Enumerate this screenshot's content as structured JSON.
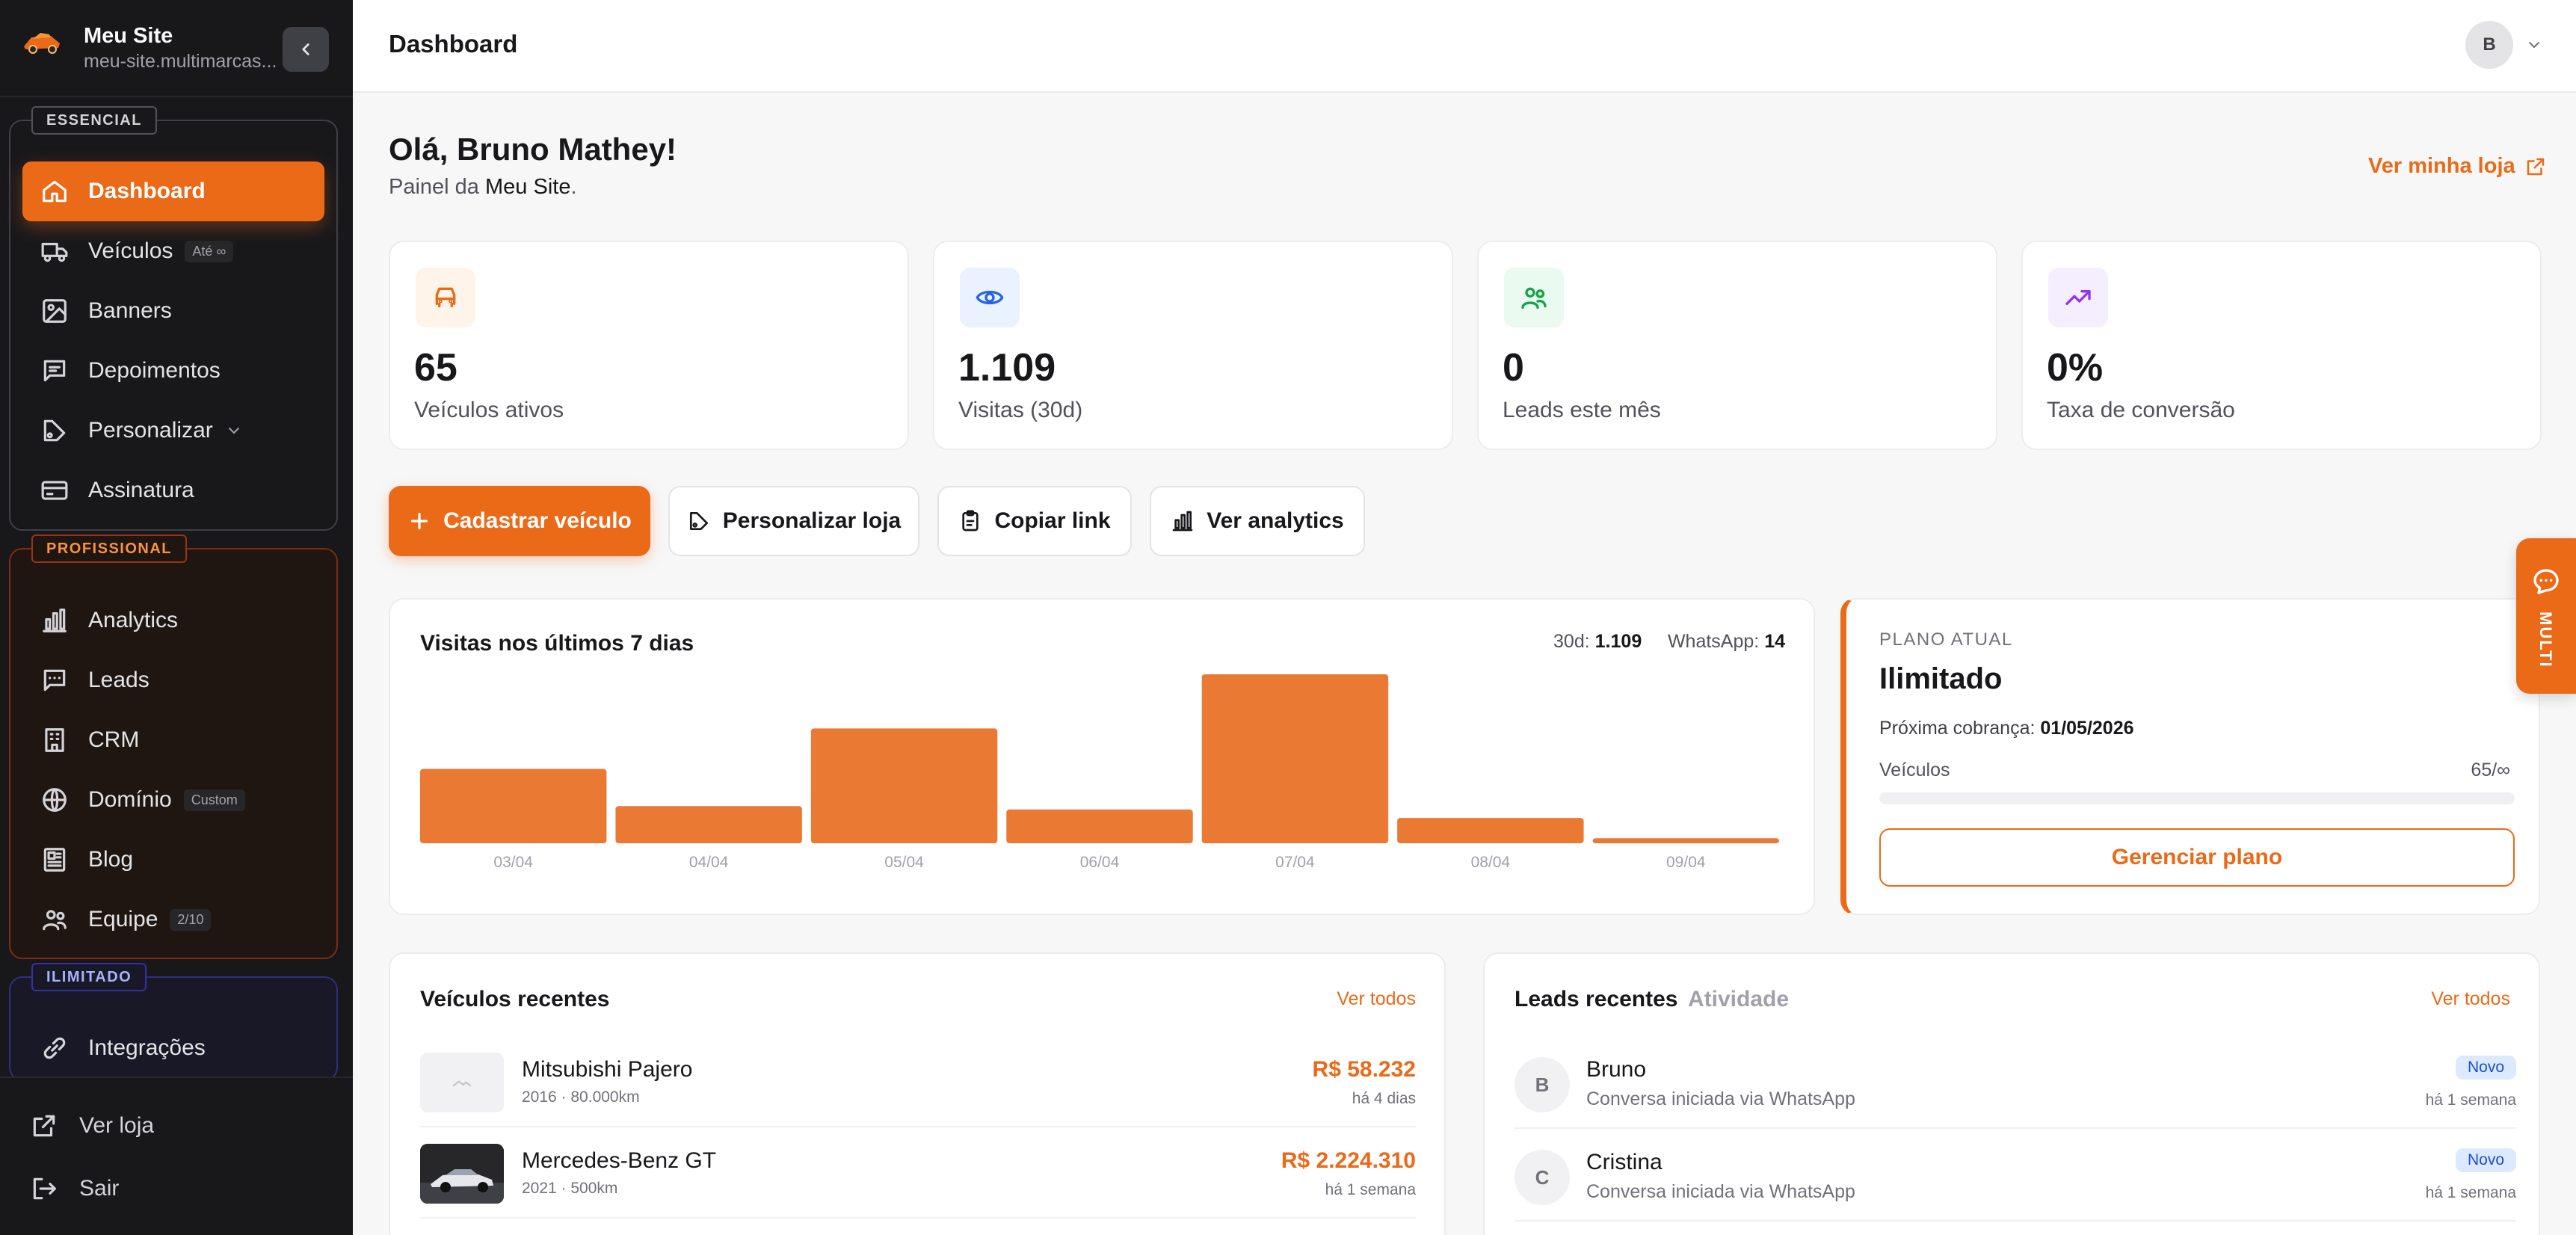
{
  "sidebar": {
    "site_name": "Meu Site",
    "site_domain": "meu-site.multimarcas...",
    "groups": {
      "essencial": {
        "tag": "ESSENCIAL",
        "items": [
          {
            "label": "Dashboard",
            "icon": "home-icon",
            "active": true
          },
          {
            "label": "Veículos",
            "icon": "truck-icon",
            "chip": "Até ∞"
          },
          {
            "label": "Banners",
            "icon": "image-icon"
          },
          {
            "label": "Depoimentos",
            "icon": "message-icon"
          },
          {
            "label": "Personalizar",
            "icon": "palette-icon"
          },
          {
            "label": "Assinatura",
            "icon": "card-icon"
          }
        ]
      },
      "profissional": {
        "tag": "PROFISSIONAL",
        "items": [
          {
            "label": "Analytics",
            "icon": "bar-chart-icon"
          },
          {
            "label": "Leads",
            "icon": "message-icon"
          },
          {
            "label": "CRM",
            "icon": "building-icon"
          },
          {
            "label": "Domínio",
            "icon": "globe-icon",
            "chip": "Custom"
          },
          {
            "label": "Blog",
            "icon": "newspaper-icon"
          },
          {
            "label": "Equipe",
            "icon": "users-icon",
            "chip": "2/10"
          }
        ]
      },
      "ilimitado": {
        "tag": "ILIMITADO",
        "items": [
          {
            "label": "Integrações",
            "icon": "link-icon"
          }
        ]
      }
    },
    "bottom": {
      "ver_loja": "Ver loja",
      "sair": "Sair"
    }
  },
  "header": {
    "title": "Dashboard",
    "avatar_initial": "B"
  },
  "main": {
    "greeting": "Olá, Bruno Mathey!",
    "subtitle_prefix": "Painel da",
    "subtitle_site": "Meu Site",
    "subtitle_suffix": ".",
    "ver_minha_loja": "Ver minha loja",
    "stats": [
      {
        "value": "65",
        "label": "Veículos ativos",
        "icon": "car-icon",
        "color": "#ea6a18"
      },
      {
        "value": "1.109",
        "label": "Visitas (30d)",
        "icon": "eye-icon",
        "color": "#2563eb"
      },
      {
        "value": "0",
        "label": "Leads este mês",
        "icon": "users-icon",
        "color": "#16a34a"
      },
      {
        "value": "0%",
        "label": "Taxa de conversão",
        "icon": "trending-up-icon",
        "color": "#9333ea"
      }
    ],
    "actions": {
      "cadastrar": "Cadastrar veículo",
      "personalizar": "Personalizar loja",
      "copiar": "Copiar link",
      "analytics": "Ver analytics"
    },
    "visits_card": {
      "title": "Visitas nos últimos 7 dias",
      "meta_30d_label": "30d:",
      "meta_30d_value": "1.109",
      "meta_wa_label": "WhatsApp:",
      "meta_wa_value": "14"
    },
    "plan": {
      "kicker": "PLANO ATUAL",
      "name": "Ilimitado",
      "billing_label": "Próxima cobrança:",
      "billing_date": "01/05/2026",
      "vehicles_label": "Veículos",
      "vehicles_value": "65/∞",
      "usage_fraction": 0.0,
      "button": "Gerenciar plano"
    },
    "recent_vehicles": {
      "title": "Veículos recentes",
      "see_all": "Ver todos",
      "rows": [
        {
          "name": "Mitsubishi Pajero",
          "sub": "2016 · 80.000km",
          "price": "R$ 58.232",
          "time": "há 4 dias"
        },
        {
          "name": "Mercedes-Benz GT",
          "sub": "2021 · 500km",
          "price": "R$ 2.224.310",
          "time": "há 1 semana"
        }
      ]
    },
    "recent_leads": {
      "title": "Leads recentes",
      "tab_activity": "Atividade",
      "see_all": "Ver todos",
      "rows": [
        {
          "initial": "B",
          "name": "Bruno",
          "sub": "Conversa iniciada via WhatsApp",
          "badge": "Novo",
          "time": "há 1 semana"
        },
        {
          "initial": "C",
          "name": "Cristina",
          "sub": "Conversa iniciada via WhatsApp",
          "badge": "Novo",
          "time": "há 1 semana"
        }
      ]
    },
    "multi_button": "MULTI"
  },
  "chart_data": {
    "type": "bar",
    "categories": [
      "03/04",
      "04/04",
      "05/04",
      "06/04",
      "07/04",
      "08/04",
      "09/04"
    ],
    "values": [
      44,
      22,
      68,
      20,
      100,
      15,
      3
    ],
    "ylim": [
      0,
      100
    ],
    "color": "#ea7a33",
    "grid": false
  },
  "colors": {
    "accent": "#ea6a18",
    "sidebar_bg": "#18181b"
  }
}
